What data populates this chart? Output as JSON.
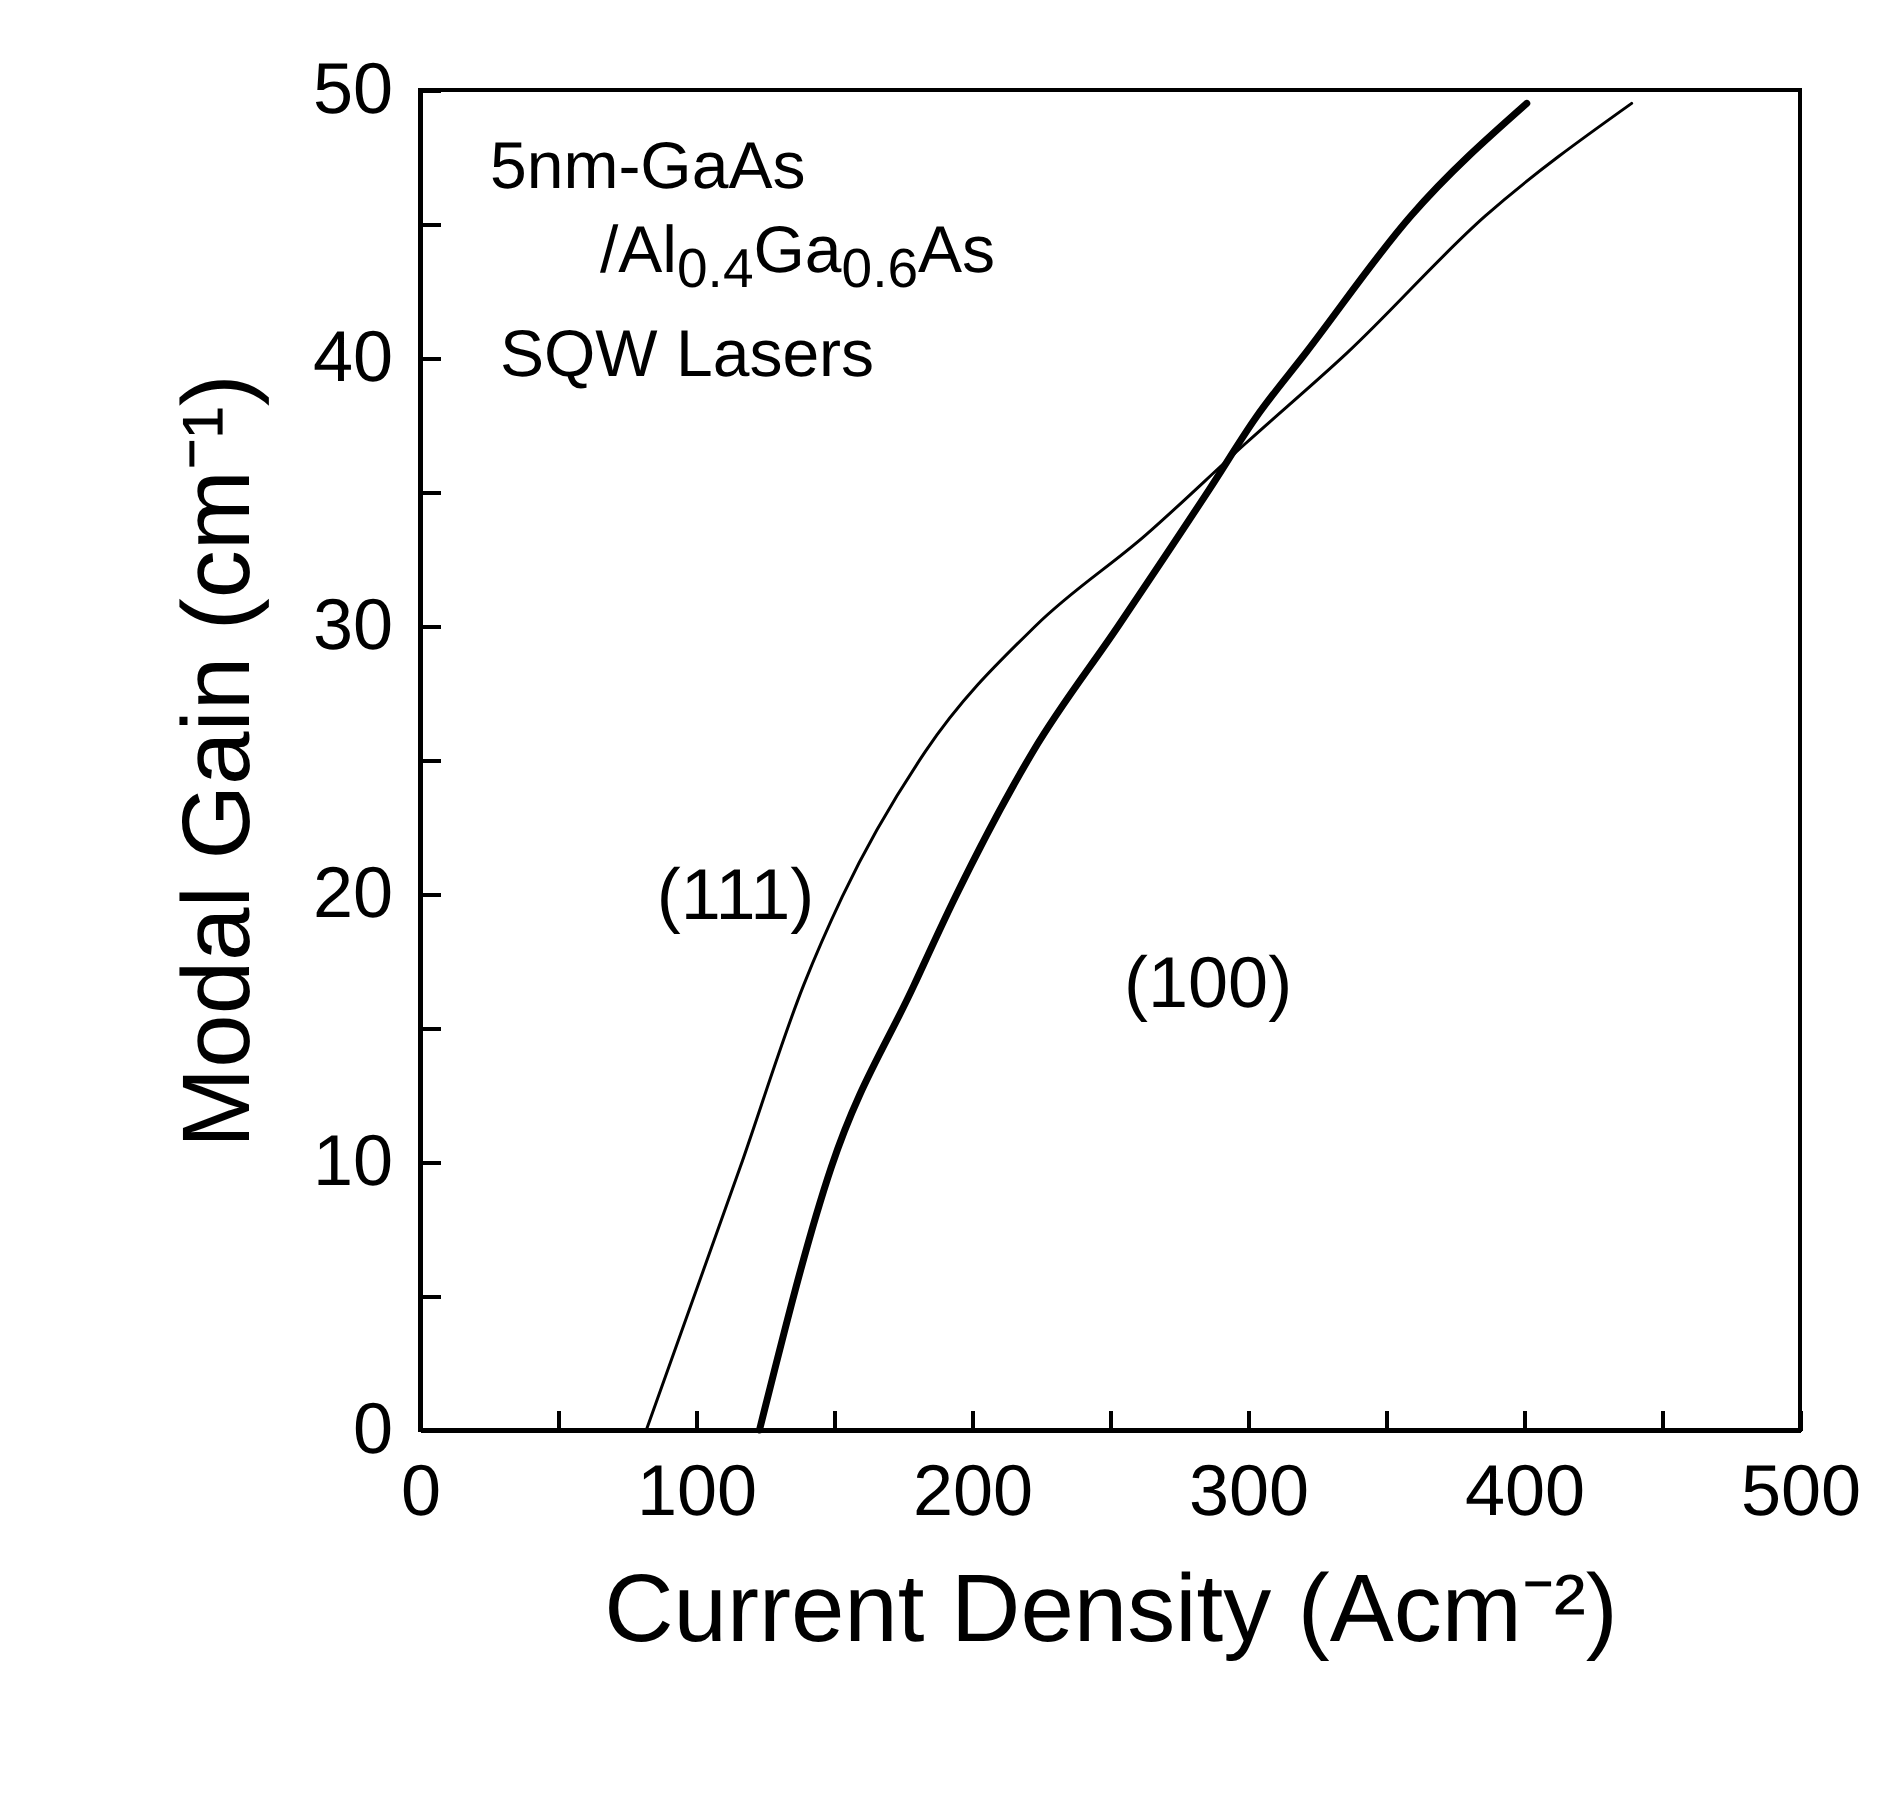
{
  "chart_data": {
    "type": "line",
    "xlabel": "Current Density (Acm⁻²)",
    "ylabel": "Modal Gain (cm⁻¹)",
    "annotations": [
      "5nm-GaAs",
      "/Al$_{0.4}$Ga$_{0.6}$As",
      "SQW Lasers"
    ],
    "xlim": [
      0,
      500
    ],
    "ylim": [
      0,
      50
    ],
    "xticks": [
      0,
      {
        "value": 50,
        "label": null
      },
      100,
      {
        "value": 150,
        "label": null
      },
      200,
      {
        "value": 250,
        "label": null
      },
      300,
      {
        "value": 350,
        "label": null
      },
      400,
      {
        "value": 450,
        "label": null
      },
      500
    ],
    "yticks": [
      0,
      {
        "value": 5,
        "label": null
      },
      10,
      {
        "value": 15,
        "label": null
      },
      20,
      {
        "value": 25,
        "label": null
      },
      30,
      {
        "value": 35,
        "label": null
      },
      40,
      {
        "value": 45,
        "label": null
      },
      50
    ],
    "series": [
      {
        "name": "(111)",
        "color": "#000000",
        "x": [
          82,
          116,
          139,
          153,
          183,
          223,
          263,
          299,
          336,
          386,
          439
        ],
        "values": [
          0,
          9.8,
          16.6,
          19.9,
          25.3,
          30,
          33.4,
          36.8,
          40.2,
          45.3,
          49.5
        ]
      },
      {
        "name": "(100)",
        "color": "#000000",
        "x": [
          123,
          149,
          179,
          194,
          222,
          253,
          286,
          303,
          321,
          359,
          401
        ],
        "values": [
          0,
          9.8,
          16.6,
          19.9,
          25.3,
          30,
          35.1,
          37.8,
          40.2,
          45.3,
          49.5
        ]
      }
    ]
  }
}
